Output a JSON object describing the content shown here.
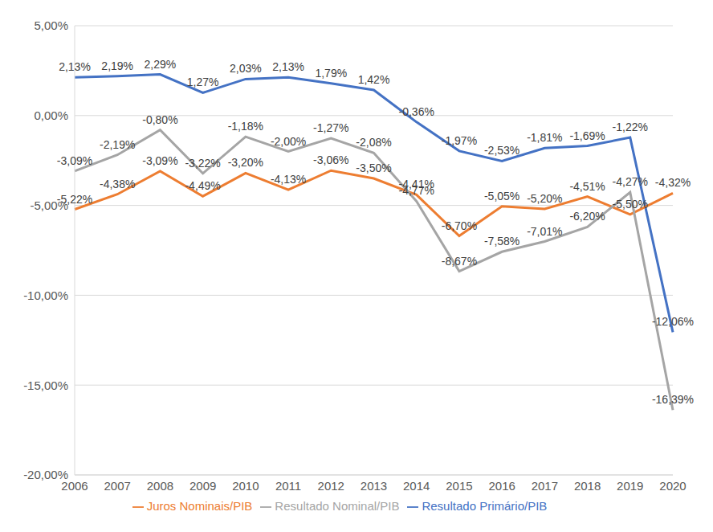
{
  "chart_data": {
    "type": "line",
    "categories": [
      "2006",
      "2007",
      "2008",
      "2009",
      "2010",
      "2011",
      "2012",
      "2013",
      "2014",
      "2015",
      "2016",
      "2017",
      "2018",
      "2019",
      "2020"
    ],
    "series": [
      {
        "name": "Resultado Primário/PIB",
        "color": "#4472c4",
        "values": [
          2.13,
          2.19,
          2.29,
          1.27,
          2.03,
          2.13,
          1.79,
          1.42,
          -0.36,
          -1.97,
          -2.53,
          -1.81,
          -1.69,
          -1.22,
          -12.06
        ],
        "value_labels": [
          "2,13%",
          "2,19%",
          "2,29%",
          "1,27%",
          "2,03%",
          "2,13%",
          "1,79%",
          "1,42%",
          "-0,36%",
          "-1,97%",
          "-2,53%",
          "-1,81%",
          "-1,69%",
          "-1,22%",
          "-12,06%"
        ]
      },
      {
        "name": "Juros Nominais/PIB",
        "color": "#ed7d31",
        "values": [
          -5.22,
          -4.38,
          -3.09,
          -4.49,
          -3.2,
          -4.13,
          -3.06,
          -3.5,
          -4.41,
          -6.7,
          -5.05,
          -5.2,
          -4.51,
          -5.5,
          -4.32
        ],
        "value_labels": [
          "-5,22%",
          "-4,38%",
          "-3,09%",
          "-4,49%",
          "-3,20%",
          "-4,13%",
          "-3,06%",
          "-3,50%",
          "-4,41%",
          "-6,70%",
          "-5,05%",
          "-5,20%",
          "-4,51%",
          "-5,50%",
          "-4,32%"
        ]
      },
      {
        "name": "Resultado Nominal/PIB",
        "color": "#a5a5a5",
        "values": [
          -3.09,
          -2.19,
          -0.8,
          -3.22,
          -1.18,
          -2.0,
          -1.27,
          -2.08,
          -4.77,
          -8.67,
          -7.58,
          -7.01,
          -6.2,
          -4.27,
          -16.39
        ],
        "value_labels": [
          "-3,09%",
          "-2,19%",
          "-0,80%",
          "-3,22%",
          "-1,18%",
          "-2,00%",
          "-1,27%",
          "-2,08%",
          "-4,77%",
          "-8,67%",
          "-7,58%",
          "-7,01%",
          "-6,20%",
          "-4,27%",
          "-16,39%"
        ]
      }
    ],
    "ylim": [
      -20,
      5
    ],
    "yticks": [
      {
        "value": -20,
        "label": "-20,00%"
      },
      {
        "value": -15,
        "label": "-15,00%"
      },
      {
        "value": -10,
        "label": "-10,00%"
      },
      {
        "value": -5,
        "label": "-5,00%"
      },
      {
        "value": 0,
        "label": "0,00%"
      },
      {
        "value": 5,
        "label": "5,00%"
      }
    ],
    "grid": true,
    "legend": "bottom",
    "data_labels": true
  }
}
